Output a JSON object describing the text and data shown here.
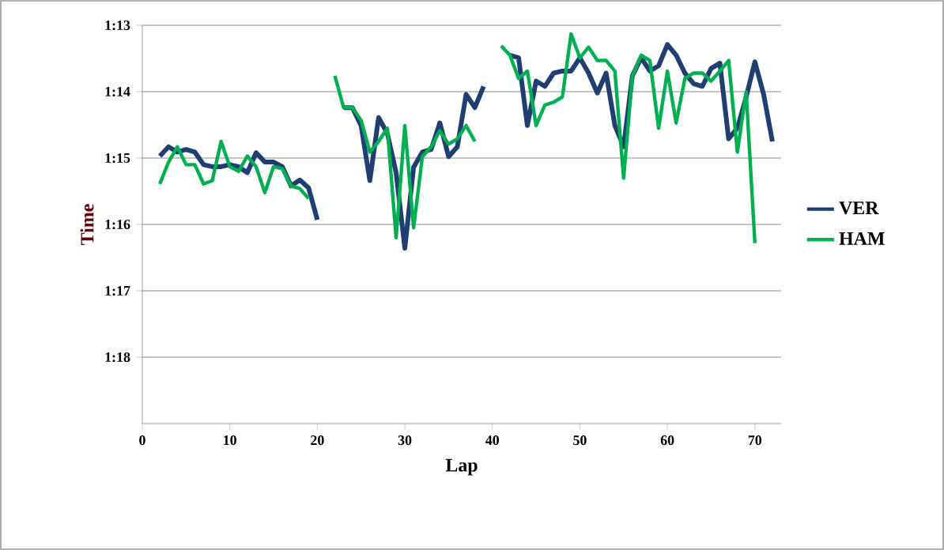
{
  "chart_data": {
    "type": "line",
    "xlabel": "Lap",
    "ylabel": "Time",
    "x": [
      2,
      3,
      4,
      5,
      6,
      7,
      8,
      9,
      10,
      11,
      12,
      13,
      14,
      15,
      16,
      17,
      18,
      19,
      20,
      21,
      22,
      23,
      24,
      25,
      26,
      27,
      28,
      29,
      30,
      31,
      32,
      33,
      34,
      35,
      36,
      37,
      38,
      39,
      40,
      41,
      42,
      43,
      44,
      45,
      46,
      47,
      48,
      49,
      50,
      51,
      52,
      53,
      54,
      55,
      56,
      57,
      58,
      59,
      60,
      61,
      62,
      63,
      64,
      65,
      66,
      67,
      68,
      69,
      70,
      71,
      72
    ],
    "series": [
      {
        "name": "VER",
        "color": "#1f3f73",
        "values": [
          74.97,
          74.83,
          74.91,
          74.87,
          74.91,
          75.1,
          75.13,
          75.13,
          75.1,
          75.13,
          75.22,
          74.92,
          75.06,
          75.06,
          75.13,
          75.42,
          75.33,
          75.45,
          75.93,
          null,
          null,
          74.24,
          74.24,
          74.51,
          75.34,
          74.39,
          74.63,
          75.22,
          76.36,
          75.14,
          74.91,
          74.87,
          74.47,
          74.98,
          74.83,
          74.04,
          74.24,
          73.92,
          null,
          null,
          73.45,
          73.49,
          74.51,
          73.84,
          73.92,
          73.72,
          73.69,
          73.69,
          73.49,
          73.72,
          74.02,
          73.72,
          74.51,
          74.83,
          73.76,
          73.49,
          73.69,
          73.61,
          73.29,
          73.45,
          73.72,
          73.88,
          73.92,
          73.65,
          73.57,
          74.71,
          74.55,
          74.08,
          73.55,
          74.04,
          74.75
        ]
      },
      {
        "name": "HAM",
        "color": "#00b050",
        "values": [
          75.39,
          75.06,
          74.83,
          75.1,
          75.1,
          75.39,
          75.34,
          74.75,
          75.13,
          75.2,
          74.97,
          75.13,
          75.52,
          75.13,
          75.16,
          75.42,
          75.46,
          75.61,
          null,
          null,
          73.76,
          74.24,
          74.24,
          74.43,
          74.91,
          74.75,
          74.55,
          76.2,
          74.51,
          76.05,
          74.98,
          74.83,
          74.59,
          74.79,
          74.71,
          74.51,
          74.75,
          null,
          null,
          73.31,
          73.45,
          73.8,
          73.69,
          74.51,
          74.2,
          74.16,
          74.08,
          73.13,
          73.49,
          73.33,
          73.53,
          73.53,
          73.69,
          75.3,
          73.76,
          73.45,
          73.53,
          74.55,
          73.69,
          74.47,
          73.8,
          73.72,
          73.72,
          73.84,
          73.69,
          73.53,
          74.91,
          74.0,
          76.28,
          null,
          null
        ]
      }
    ],
    "xlim": [
      0,
      73
    ],
    "xticks": [
      0,
      10,
      20,
      30,
      40,
      50,
      60,
      70
    ],
    "ylim": [
      79,
      73
    ],
    "yticks": [
      {
        "value": 73,
        "label": "1:13"
      },
      {
        "value": 74,
        "label": "1:14"
      },
      {
        "value": 75,
        "label": "1:15"
      },
      {
        "value": 76,
        "label": "1:16"
      },
      {
        "value": 77,
        "label": "1:17"
      },
      {
        "value": 78,
        "label": "1:18"
      }
    ],
    "grid": "y",
    "legend": "right",
    "marker": "none",
    "line_style": "solid"
  }
}
